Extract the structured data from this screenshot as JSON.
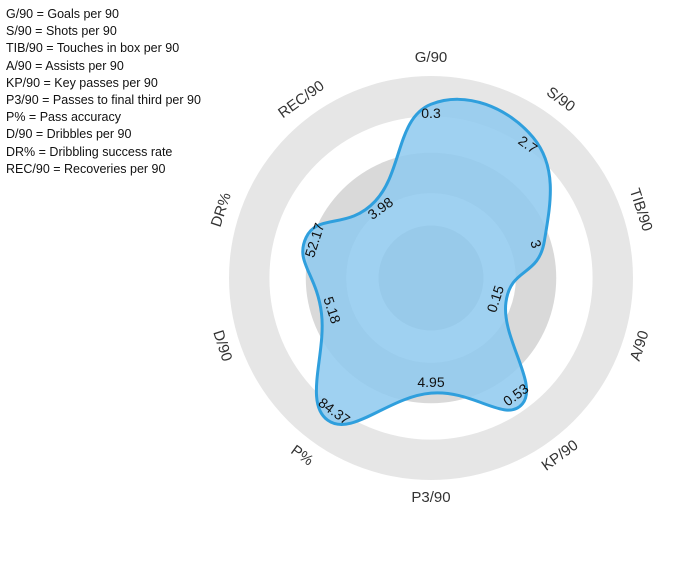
{
  "legend": [
    {
      "abbr": "G/90",
      "desc": "Goals per 90"
    },
    {
      "abbr": "S/90",
      "desc": "Shots per 90"
    },
    {
      "abbr": "TIB/90",
      "desc": "Touches in box per 90"
    },
    {
      "abbr": "A/90",
      "desc": "Assists per 90"
    },
    {
      "abbr": "KP/90",
      "desc": "Key passes per 90"
    },
    {
      "abbr": "P3/90",
      "desc": "Passes to final third per 90"
    },
    {
      "abbr": "P%",
      "desc": "Pass accuracy"
    },
    {
      "abbr": "D/90",
      "desc": "Dribbles per 90"
    },
    {
      "abbr": "DR%",
      "desc": "Dribbling success rate"
    },
    {
      "abbr": "REC/90",
      "desc": "Recoveries per 90"
    }
  ],
  "chart_data": {
    "type": "radar",
    "categories": [
      "G/90",
      "S/90",
      "TIB/90",
      "A/90",
      "KP/90",
      "P3/90",
      "P%",
      "D/90",
      "DR%",
      "REC/90"
    ],
    "values": [
      0.3,
      2.7,
      3,
      0.15,
      0.53,
      4.95,
      84.37,
      5.18,
      52.17,
      3.98
    ],
    "value_labels": [
      "0.3",
      "2.7",
      "3",
      "0.15",
      "0.53",
      "4.95",
      "84.37",
      "5.18",
      "52.17",
      "3.98"
    ],
    "relative_scale": [
      0.86,
      0.86,
      0.59,
      0.39,
      0.77,
      0.57,
      0.87,
      0.57,
      0.65,
      0.47
    ],
    "rings": 3,
    "colors": {
      "fill": "#8ec9ee",
      "stroke": "#2f9fdd",
      "ring_outer": "#e6e6e6",
      "ring_mid": "#d9d9d9",
      "ring_inner": "#cecece"
    }
  }
}
